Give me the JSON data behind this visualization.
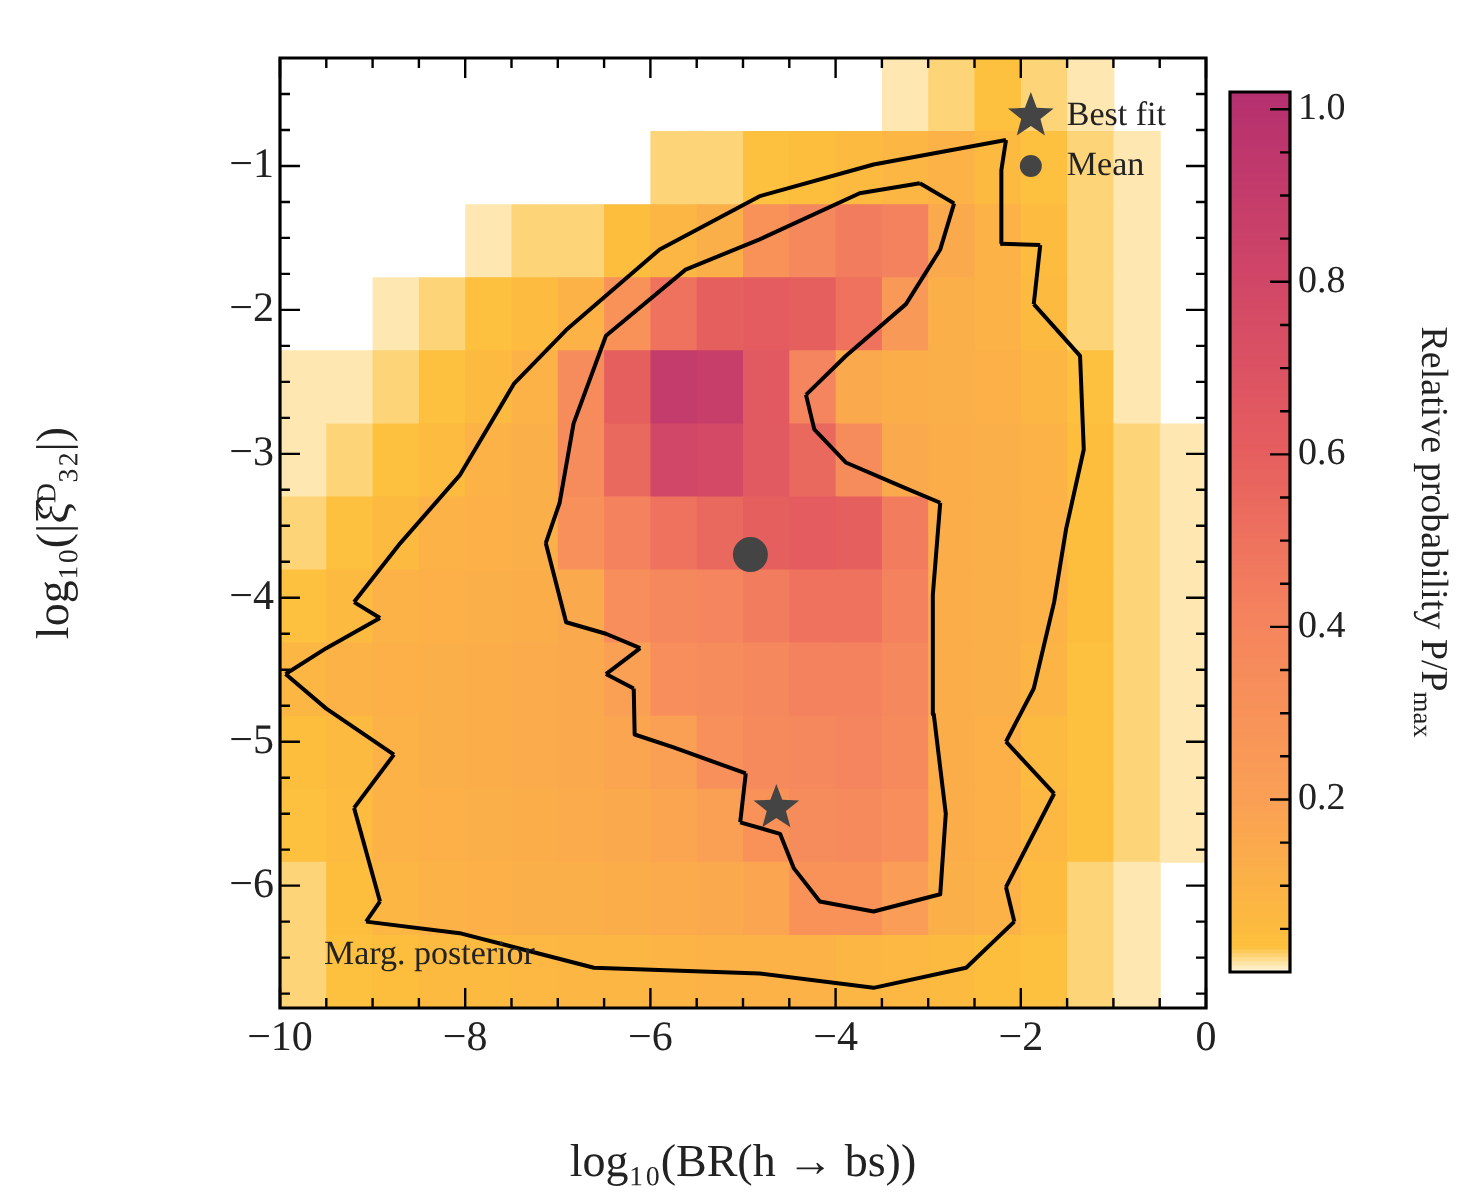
{
  "chart_data": {
    "type": "heatmap",
    "xlabel": "log₁₀(BR(h → bs))",
    "ylabel": "log₁₀(|ξ̂ᴰ₃₂|)",
    "clabel": "Relative probability P/P$_{max}$",
    "annotations": [
      "Marg. posterior"
    ],
    "legend": "top right",
    "cells": [
      [
        null,
        null,
        null,
        null,
        null,
        null,
        null,
        null,
        null,
        null,
        null,
        null,
        null,
        0.01,
        0.02,
        0.03,
        0.02,
        0.01,
        null,
        null
      ],
      [
        null,
        null,
        null,
        null,
        null,
        null,
        null,
        null,
        0.02,
        0.02,
        0.03,
        0.04,
        0.06,
        0.08,
        0.1,
        0.06,
        0.03,
        0.02,
        0.01,
        null
      ],
      [
        null,
        null,
        null,
        null,
        0.01,
        0.02,
        0.02,
        0.04,
        0.08,
        0.12,
        0.3,
        0.38,
        0.45,
        0.42,
        0.15,
        0.1,
        0.05,
        0.02,
        0.01,
        null
      ],
      [
        null,
        null,
        0.01,
        0.02,
        0.03,
        0.05,
        0.1,
        0.3,
        0.5,
        0.6,
        0.62,
        0.6,
        0.5,
        0.25,
        0.12,
        0.1,
        0.06,
        0.02,
        0.01,
        null
      ],
      [
        0.01,
        0.01,
        0.02,
        0.03,
        0.06,
        0.1,
        0.35,
        0.6,
        0.9,
        0.88,
        0.65,
        0.4,
        0.15,
        0.13,
        0.12,
        0.11,
        0.08,
        0.03,
        0.01,
        null
      ],
      [
        0.01,
        0.02,
        0.03,
        0.05,
        0.1,
        0.12,
        0.35,
        0.55,
        0.8,
        0.78,
        0.65,
        0.55,
        0.35,
        0.15,
        0.13,
        0.12,
        0.1,
        0.04,
        0.02,
        0.01
      ],
      [
        0.02,
        0.03,
        0.06,
        0.1,
        0.11,
        0.12,
        0.32,
        0.42,
        0.5,
        0.55,
        0.6,
        0.62,
        0.6,
        0.45,
        0.13,
        0.12,
        0.1,
        0.04,
        0.02,
        0.01
      ],
      [
        0.03,
        0.06,
        0.1,
        0.11,
        0.12,
        0.13,
        0.15,
        0.33,
        0.38,
        0.4,
        0.45,
        0.5,
        0.5,
        0.42,
        0.13,
        0.12,
        0.1,
        0.04,
        0.02,
        0.01
      ],
      [
        0.08,
        0.1,
        0.11,
        0.12,
        0.13,
        0.14,
        0.15,
        0.2,
        0.33,
        0.35,
        0.38,
        0.42,
        0.42,
        0.38,
        0.13,
        0.12,
        0.09,
        0.03,
        0.02,
        0.01
      ],
      [
        0.04,
        0.06,
        0.1,
        0.12,
        0.13,
        0.14,
        0.15,
        0.17,
        0.2,
        0.32,
        0.36,
        0.38,
        0.4,
        0.36,
        0.13,
        0.11,
        0.06,
        0.03,
        0.02,
        0.01
      ],
      [
        0.03,
        0.05,
        0.1,
        0.11,
        0.12,
        0.13,
        0.14,
        0.15,
        0.17,
        0.2,
        0.3,
        0.35,
        0.36,
        0.33,
        0.13,
        0.11,
        0.07,
        0.03,
        0.02,
        0.01
      ],
      [
        0.02,
        0.04,
        0.08,
        0.1,
        0.11,
        0.12,
        0.12,
        0.13,
        0.14,
        0.15,
        0.17,
        0.3,
        0.3,
        0.22,
        0.12,
        0.1,
        0.05,
        0.02,
        0.01,
        null
      ],
      [
        0.02,
        0.03,
        0.04,
        0.06,
        0.06,
        0.07,
        0.08,
        0.08,
        0.09,
        0.1,
        0.1,
        0.1,
        0.08,
        0.07,
        0.06,
        0.04,
        0.03,
        0.02,
        0.01,
        null
      ]
    ],
    "clim": [
      0,
      1.02
    ],
    "cticks": [
      {
        "value": 0.05,
        "label": null
      },
      {
        "value": 0.1,
        "label": null
      },
      {
        "value": 0.15,
        "label": null
      },
      0.2,
      {
        "value": 0.25,
        "label": null
      },
      {
        "value": 0.3,
        "label": null
      },
      {
        "value": 0.35,
        "label": null
      },
      0.4,
      {
        "value": 0.45,
        "label": null
      },
      {
        "value": 0.5,
        "label": null
      },
      {
        "value": 0.55,
        "label": null
      },
      0.6,
      {
        "value": 0.65,
        "label": null
      },
      {
        "value": 0.7,
        "label": null
      },
      {
        "value": 0.75,
        "label": null
      },
      0.8,
      {
        "value": 0.85,
        "label": null
      },
      {
        "value": 0.9,
        "label": null
      },
      {
        "value": 0.95,
        "label": null
      },
      {
        "value": 1,
        "label": "1.0"
      }
    ],
    "xlim": [
      -10,
      0
    ],
    "ylim": [
      -6.85,
      -0.25
    ],
    "xticks": [
      {
        "value": -10,
        "label": "−10"
      },
      {
        "value": -9.5,
        "label": null
      },
      {
        "value": -9,
        "label": null
      },
      {
        "value": -8.5,
        "label": null
      },
      {
        "value": -8,
        "label": "−8"
      },
      {
        "value": -7.5,
        "label": null
      },
      {
        "value": -7,
        "label": null
      },
      {
        "value": -6.5,
        "label": null
      },
      {
        "value": -6,
        "label": "−6"
      },
      {
        "value": -5.5,
        "label": null
      },
      {
        "value": -5,
        "label": null
      },
      {
        "value": -4.5,
        "label": null
      },
      {
        "value": -4,
        "label": "−4"
      },
      {
        "value": -3.5,
        "label": null
      },
      {
        "value": -3,
        "label": null
      },
      {
        "value": -2.5,
        "label": null
      },
      {
        "value": -2,
        "label": "−2"
      },
      {
        "value": -1.5,
        "label": null
      },
      {
        "value": -1,
        "label": null
      },
      {
        "value": -0.5,
        "label": null
      },
      0
    ],
    "yticks": [
      {
        "value": -6.75,
        "label": null
      },
      {
        "value": -6.5,
        "label": null
      },
      {
        "value": -6.25,
        "label": null
      },
      {
        "value": -6,
        "label": "−6"
      },
      {
        "value": -5.75,
        "label": null
      },
      {
        "value": -5.5,
        "label": null
      },
      {
        "value": -5.25,
        "label": null
      },
      {
        "value": -5,
        "label": "−5"
      },
      {
        "value": -4.75,
        "label": null
      },
      {
        "value": -4.5,
        "label": null
      },
      {
        "value": -4.25,
        "label": null
      },
      {
        "value": -4,
        "label": "−4"
      },
      {
        "value": -3.75,
        "label": null
      },
      {
        "value": -3.5,
        "label": null
      },
      {
        "value": -3.25,
        "label": null
      },
      {
        "value": -3,
        "label": "−3"
      },
      {
        "value": -2.75,
        "label": null
      },
      {
        "value": -2.5,
        "label": null
      },
      {
        "value": -2.25,
        "label": null
      },
      {
        "value": -2,
        "label": "−2"
      },
      {
        "value": -1.75,
        "label": null
      },
      {
        "value": -1.5,
        "label": null
      },
      {
        "value": -1.25,
        "label": null
      },
      {
        "value": -1,
        "label": "−1"
      },
      {
        "value": -0.75,
        "label": null
      },
      {
        "value": -0.5,
        "label": null
      }
    ],
    "series": [
      {
        "type": "line",
        "color": "#000000",
        "x": [
          -9.2,
          -8.7,
          -8.06,
          -7.47,
          -6.91,
          -5.9,
          -4.82,
          -3.59,
          -2.16
        ],
        "values": [
          -4.03,
          -3.62,
          -3.15,
          -2.51,
          -2.14,
          -1.58,
          -1.21,
          -0.99,
          -0.82
        ]
      },
      {
        "type": "line",
        "color": "#000000",
        "x": [
          -9.2,
          -8.92
        ],
        "values": [
          -4.03,
          -4.14
        ]
      },
      {
        "type": "line",
        "color": "#000000",
        "x": [
          -9.94,
          -9.5,
          -8.92
        ],
        "values": [
          -4.53,
          -4.35,
          -4.14
        ]
      },
      {
        "type": "line",
        "color": "#000000",
        "x": [
          -9.94,
          -9.5,
          -8.77
        ],
        "values": [
          -4.53,
          -4.77,
          -5.09
        ]
      },
      {
        "type": "line",
        "color": "#000000",
        "x": [
          -9.2,
          -8.77
        ],
        "values": [
          -5.46,
          -5.09
        ]
      },
      {
        "type": "line",
        "color": "#000000",
        "x": [
          -9.2,
          -8.92
        ],
        "values": [
          -5.46,
          -6.11
        ]
      },
      {
        "type": "line",
        "color": "#000000",
        "x": [
          -9.07,
          -8.92
        ],
        "values": [
          -6.25,
          -6.11
        ]
      },
      {
        "type": "line",
        "color": "#000000",
        "x": [
          -9.07,
          -8.06,
          -6.61,
          -4.82,
          -3.59,
          -2.59,
          -2.07
        ],
        "values": [
          -6.25,
          -6.33,
          -6.57,
          -6.61,
          -6.71,
          -6.57,
          -6.25
        ]
      },
      {
        "type": "line",
        "color": "#000000",
        "x": [
          -2.16,
          -2.07
        ],
        "values": [
          -6.01,
          -6.25
        ]
      },
      {
        "type": "line",
        "color": "#000000",
        "x": [
          -2.16,
          -1.64
        ],
        "values": [
          -6.01,
          -5.36
        ]
      },
      {
        "type": "line",
        "color": "#000000",
        "x": [
          -2.16,
          -1.64
        ],
        "values": [
          -5.0,
          -5.36
        ]
      },
      {
        "type": "line",
        "color": "#000000",
        "x": [
          -2.16,
          -1.86,
          -1.64,
          -1.51,
          -1.32,
          -1.36,
          -1.86
        ],
        "values": [
          -5.0,
          -4.63,
          -4.03,
          -3.52,
          -2.97,
          -2.32,
          -1.96
        ]
      },
      {
        "type": "line",
        "color": "#000000",
        "x": [
          -1.86,
          -1.79
        ],
        "values": [
          -1.96,
          -1.55
        ]
      },
      {
        "type": "line",
        "color": "#000000",
        "x": [
          -2.22,
          -1.79
        ],
        "values": [
          -1.54,
          -1.55
        ]
      },
      {
        "type": "line",
        "color": "#000000",
        "x": [
          -2.22,
          -2.21,
          -2.16
        ],
        "values": [
          -1.54,
          -1.03,
          -0.82
        ]
      },
      {
        "type": "line",
        "color": "#000000",
        "x": [
          -7.13,
          -6.98,
          -6.83,
          -6.48,
          -5.62,
          -4.82,
          -3.74,
          -3.09
        ],
        "values": [
          -3.62,
          -3.34,
          -2.79,
          -2.18,
          -1.72,
          -1.51,
          -1.19,
          -1.12
        ]
      },
      {
        "type": "line",
        "color": "#000000",
        "x": [
          -7.13,
          -6.91,
          -6.48,
          -6.11
        ],
        "values": [
          -3.62,
          -4.17,
          -4.25,
          -4.35
        ]
      },
      {
        "type": "line",
        "color": "#000000",
        "x": [
          -6.48,
          -6.11
        ],
        "values": [
          -4.53,
          -4.35
        ]
      },
      {
        "type": "line",
        "color": "#000000",
        "x": [
          -6.48,
          -6.18
        ],
        "values": [
          -4.53,
          -4.63
        ]
      },
      {
        "type": "line",
        "color": "#000000",
        "x": [
          -6.18,
          -6.17,
          -5.75,
          -4.97
        ],
        "values": [
          -4.63,
          -4.95,
          -5.04,
          -5.22
        ]
      },
      {
        "type": "line",
        "color": "#000000",
        "x": [
          -5.03,
          -4.97
        ],
        "values": [
          -5.56,
          -5.22
        ]
      },
      {
        "type": "line",
        "color": "#000000",
        "x": [
          -5.03,
          -4.6,
          -4.45,
          -4.17,
          -3.59,
          -2.87,
          -2.81,
          -2.94,
          -2.95,
          -2.87
        ],
        "values": [
          -5.56,
          -5.64,
          -5.88,
          -6.11,
          -6.18,
          -6.06,
          -5.5,
          -4.81,
          -3.98,
          -3.34
        ]
      },
      {
        "type": "line",
        "color": "#000000",
        "x": [
          -4.32,
          -4.23,
          -3.89,
          -3.24,
          -2.87
        ],
        "values": [
          -2.59,
          -2.83,
          -3.06,
          -3.24,
          -3.34
        ]
      },
      {
        "type": "line",
        "color": "#000000",
        "x": [
          -4.32,
          -3.89,
          -3.24,
          -2.87,
          -2.72
        ],
        "values": [
          -2.59,
          -2.32,
          -1.96,
          -1.58,
          -1.26
        ]
      },
      {
        "type": "line",
        "color": "#000000",
        "x": [
          -3.09,
          -2.72
        ],
        "values": [
          -1.12,
          -1.26
        ]
      },
      {
        "type": "scatter",
        "name": "Best fit",
        "marker": "star",
        "color": "#444444",
        "x": [
          -4.64
        ],
        "values": [
          -5.46
        ]
      },
      {
        "type": "scatter",
        "name": "Mean",
        "marker": "circle",
        "color": "#444444",
        "x": [
          -4.92
        ],
        "values": [
          -3.7
        ]
      }
    ]
  }
}
